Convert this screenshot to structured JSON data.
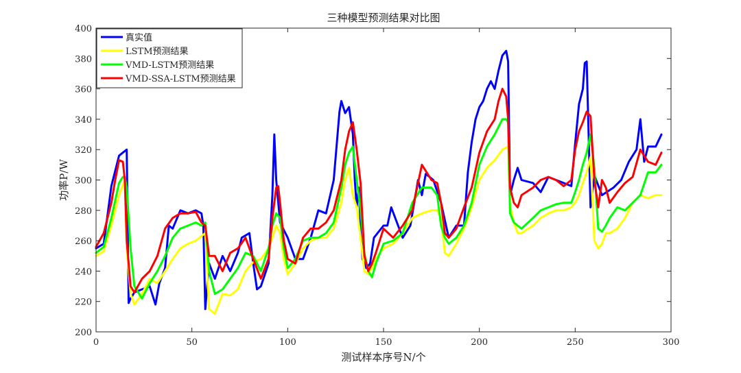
{
  "chart_data": {
    "type": "line",
    "title": "三种模型预测结果对比图",
    "xlabel": "测试样本序号N/个",
    "ylabel": "功率P/W",
    "xlim": [
      0,
      300
    ],
    "ylim": [
      200,
      400
    ],
    "xticks": [
      0,
      50,
      100,
      150,
      200,
      250,
      300
    ],
    "yticks": [
      200,
      220,
      240,
      260,
      280,
      300,
      320,
      340,
      360,
      380,
      400
    ],
    "grid": false,
    "legend_position": "top-left",
    "series": [
      {
        "name": "真实值",
        "color": "#0000ff",
        "x": [
          0,
          4,
          8,
          12,
          14,
          16,
          17,
          18,
          20,
          24,
          28,
          30,
          31,
          33,
          36,
          38,
          40,
          44,
          48,
          52,
          55,
          56,
          57,
          59,
          62,
          66,
          70,
          74,
          76,
          80,
          82,
          84,
          86,
          90,
          92,
          93,
          94,
          96,
          100,
          104,
          108,
          112,
          116,
          120,
          124,
          127,
          128,
          130,
          132,
          134,
          135,
          136,
          137,
          139,
          141,
          143,
          145,
          150,
          152,
          154,
          160,
          164,
          168,
          170,
          172,
          176,
          180,
          184,
          188,
          192,
          194,
          196,
          198,
          200,
          202,
          204,
          206,
          208,
          210,
          212,
          214,
          215,
          216,
          218,
          220,
          222,
          228,
          232,
          236,
          240,
          244,
          248,
          250,
          252,
          253,
          254,
          255,
          256,
          258,
          260,
          264,
          270,
          274,
          278,
          282,
          284,
          286,
          288,
          292,
          295
        ],
        "y": [
          255,
          258,
          296,
          316,
          318,
          320,
          219,
          222,
          226,
          228,
          230,
          222,
          218,
          232,
          242,
          270,
          268,
          280,
          278,
          280,
          278,
          270,
          215,
          245,
          235,
          250,
          240,
          252,
          262,
          265,
          245,
          228,
          230,
          245,
          290,
          330,
          300,
          272,
          262,
          248,
          248,
          262,
          280,
          278,
          300,
          345,
          352,
          344,
          348,
          330,
          300,
          282,
          295,
          248,
          242,
          245,
          262,
          270,
          270,
          282,
          262,
          270,
          300,
          290,
          304,
          300,
          285,
          262,
          270,
          270,
          305,
          325,
          340,
          348,
          352,
          360,
          365,
          360,
          372,
          382,
          385,
          378,
          290,
          300,
          308,
          300,
          298,
          292,
          302,
          300,
          298,
          296,
          324,
          350,
          355,
          360,
          377,
          378,
          282,
          303,
          290,
          295,
          300,
          312,
          320,
          340,
          312,
          322,
          322,
          330
        ]
      },
      {
        "name": "LSTM预测结果",
        "color": "#ffff00",
        "x": [
          0,
          4,
          8,
          12,
          15,
          16,
          18,
          20,
          24,
          28,
          32,
          36,
          40,
          44,
          48,
          52,
          55,
          57,
          59,
          62,
          66,
          70,
          74,
          78,
          82,
          86,
          90,
          92,
          94,
          96,
          98,
          100,
          104,
          108,
          112,
          116,
          120,
          124,
          128,
          130,
          132,
          134,
          136,
          138,
          140,
          142,
          144,
          146,
          150,
          155,
          160,
          165,
          170,
          175,
          178,
          180,
          182,
          184,
          188,
          192,
          196,
          200,
          204,
          208,
          212,
          215,
          216,
          218,
          220,
          222,
          228,
          232,
          236,
          240,
          244,
          248,
          250,
          252,
          254,
          256,
          258,
          260,
          262,
          264,
          266,
          268,
          272,
          276,
          280,
          284,
          288,
          292,
          295
        ],
        "y": [
          250,
          253,
          270,
          290,
          300,
          255,
          225,
          218,
          225,
          235,
          232,
          240,
          248,
          255,
          258,
          260,
          263,
          265,
          215,
          212,
          225,
          224,
          228,
          240,
          246,
          248,
          255,
          262,
          270,
          265,
          248,
          238,
          245,
          255,
          260,
          262,
          262,
          268,
          285,
          300,
          308,
          290,
          282,
          262,
          240,
          238,
          242,
          248,
          255,
          258,
          265,
          275,
          278,
          280,
          280,
          275,
          252,
          250,
          258,
          268,
          282,
          300,
          308,
          313,
          320,
          322,
          283,
          272,
          265,
          265,
          270,
          275,
          278,
          280,
          280,
          282,
          285,
          290,
          298,
          305,
          315,
          260,
          255,
          258,
          265,
          265,
          268,
          275,
          285,
          290,
          288,
          290,
          290
        ]
      },
      {
        "name": "VMD-LSTM预测结果",
        "color": "#00ff00",
        "x": [
          0,
          4,
          8,
          12,
          14,
          15,
          16,
          18,
          20,
          24,
          28,
          32,
          36,
          40,
          44,
          48,
          52,
          55,
          57,
          59,
          62,
          66,
          70,
          74,
          78,
          82,
          86,
          90,
          92,
          94,
          96,
          98,
          100,
          104,
          108,
          112,
          116,
          120,
          124,
          128,
          130,
          132,
          134,
          136,
          138,
          140,
          142,
          144,
          146,
          150,
          155,
          160,
          165,
          170,
          175,
          178,
          180,
          182,
          184,
          188,
          192,
          196,
          200,
          204,
          208,
          212,
          214,
          215,
          216,
          218,
          220,
          222,
          228,
          232,
          236,
          240,
          244,
          248,
          250,
          252,
          254,
          256,
          258,
          260,
          262,
          264,
          266,
          268,
          272,
          276,
          280,
          284,
          288,
          292,
          295
        ],
        "y": [
          252,
          256,
          275,
          298,
          302,
          302,
          295,
          255,
          230,
          222,
          232,
          240,
          250,
          262,
          268,
          270,
          272,
          270,
          272,
          240,
          225,
          228,
          235,
          242,
          252,
          250,
          240,
          255,
          270,
          278,
          275,
          255,
          242,
          248,
          260,
          262,
          262,
          265,
          272,
          295,
          310,
          318,
          322,
          300,
          280,
          252,
          240,
          236,
          245,
          258,
          260,
          265,
          285,
          295,
          295,
          290,
          270,
          262,
          258,
          262,
          270,
          285,
          310,
          322,
          330,
          340,
          340,
          338,
          278,
          272,
          270,
          268,
          275,
          280,
          282,
          284,
          285,
          285,
          292,
          300,
          310,
          318,
          330,
          308,
          268,
          266,
          270,
          275,
          282,
          280,
          285,
          290,
          305,
          305,
          310
        ]
      },
      {
        "name": "VMD-SSA-LSTM预测结果",
        "color": "#ff0000",
        "x": [
          0,
          4,
          8,
          10,
          12,
          14,
          15,
          16,
          18,
          20,
          24,
          28,
          32,
          36,
          40,
          44,
          48,
          52,
          55,
          57,
          59,
          62,
          66,
          70,
          74,
          78,
          82,
          86,
          90,
          92,
          94,
          95,
          96,
          98,
          100,
          104,
          108,
          112,
          116,
          120,
          124,
          128,
          130,
          132,
          134,
          136,
          138,
          140,
          142,
          144,
          146,
          150,
          155,
          160,
          165,
          170,
          175,
          178,
          180,
          182,
          184,
          188,
          192,
          196,
          200,
          204,
          208,
          210,
          212,
          214,
          215,
          216,
          218,
          220,
          222,
          228,
          232,
          236,
          240,
          244,
          248,
          250,
          252,
          254,
          256,
          258,
          260,
          262,
          264,
          266,
          268,
          272,
          276,
          280,
          284,
          288,
          292,
          295
        ],
        "y": [
          256,
          265,
          285,
          300,
          313,
          312,
          300,
          260,
          230,
          226,
          235,
          240,
          250,
          268,
          275,
          278,
          278,
          279,
          272,
          270,
          250,
          250,
          240,
          252,
          255,
          262,
          248,
          235,
          248,
          275,
          295,
          296,
          285,
          260,
          248,
          245,
          262,
          268,
          268,
          272,
          280,
          300,
          320,
          332,
          338,
          320,
          298,
          250,
          240,
          245,
          252,
          268,
          262,
          270,
          280,
          310,
          300,
          298,
          285,
          265,
          262,
          268,
          282,
          295,
          318,
          332,
          340,
          352,
          360,
          355,
          340,
          295,
          285,
          282,
          290,
          295,
          300,
          302,
          300,
          296,
          300,
          320,
          332,
          338,
          345,
          342,
          300,
          282,
          300,
          295,
          285,
          292,
          298,
          302,
          320,
          312,
          310,
          318
        ]
      }
    ]
  }
}
